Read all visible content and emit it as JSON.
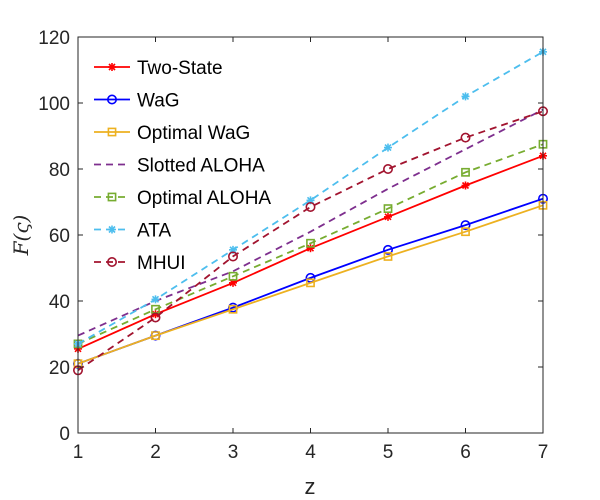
{
  "chart_data": {
    "type": "line",
    "title": "",
    "xlabel": "z",
    "ylabel": "F(ς)",
    "xlim": [
      1,
      7
    ],
    "ylim": [
      0,
      120
    ],
    "xticks": [
      1,
      2,
      3,
      4,
      5,
      6,
      7
    ],
    "yticks": [
      0,
      20,
      40,
      60,
      80,
      100,
      120
    ],
    "x": [
      1,
      2,
      3,
      4,
      5,
      6,
      7
    ],
    "grid": false,
    "legend_position": "top-left",
    "series": [
      {
        "name": "Two-State",
        "color": "#FF0000",
        "dash": "solid",
        "marker": "asterisk",
        "values": [
          25.5,
          36,
          45.5,
          56,
          65.5,
          75,
          84
        ]
      },
      {
        "name": "WaG",
        "color": "#0000FF",
        "dash": "solid",
        "marker": "circle",
        "values": [
          21,
          29.5,
          38,
          47,
          55.5,
          63,
          71
        ]
      },
      {
        "name": "Optimal WaG",
        "color": "#EDB120",
        "dash": "solid",
        "marker": "square",
        "values": [
          21,
          29.5,
          37.5,
          45.5,
          53.5,
          61,
          69
        ]
      },
      {
        "name": "Slotted ALOHA",
        "color": "#7E2F8E",
        "dash": "dashed",
        "marker": "none",
        "values": [
          29.5,
          40,
          49,
          61,
          74,
          86,
          98
        ]
      },
      {
        "name": "Optimal ALOHA",
        "color": "#77AC30",
        "dash": "dashed",
        "marker": "square",
        "values": [
          27,
          37.5,
          47.5,
          57.5,
          68,
          79,
          87.5
        ]
      },
      {
        "name": "ATA",
        "color": "#4DBEEE",
        "dash": "dashed",
        "marker": "asterisk",
        "values": [
          27,
          40.5,
          55.5,
          70.5,
          86.5,
          102,
          115.5
        ]
      },
      {
        "name": "MHUI",
        "color": "#A2142F",
        "dash": "dashed",
        "marker": "circle",
        "values": [
          19,
          35,
          53.5,
          68.5,
          80,
          89.5,
          97.5
        ]
      }
    ]
  }
}
